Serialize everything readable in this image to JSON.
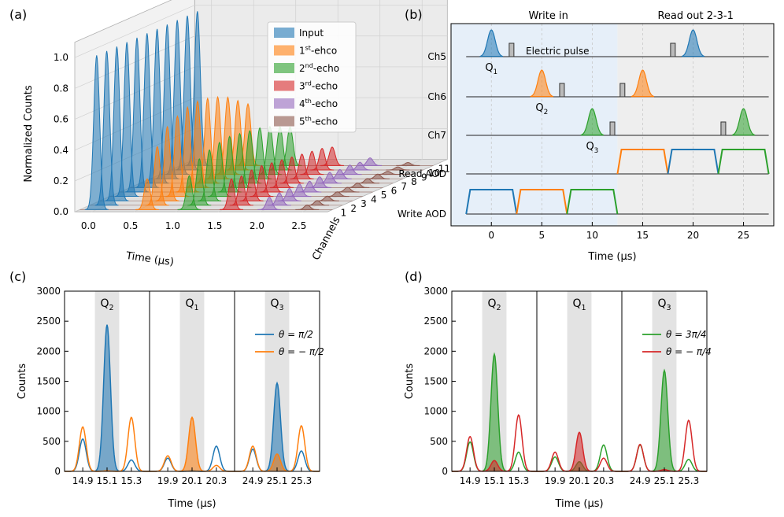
{
  "chart_data": [
    {
      "panel": "(a)",
      "type": "area",
      "title": "",
      "xlabel": "Time (μs)",
      "ylabel": "Normalized Counts",
      "zlabel": "Channels",
      "x_ticks": [
        "0.0",
        "0.5",
        "1.0",
        "1.5",
        "2.0",
        "2.5"
      ],
      "y_ticks": [
        "0.0",
        "0.2",
        "0.4",
        "0.6",
        "0.8",
        "1.0"
      ],
      "channel_ticks": [
        "1",
        "2",
        "3",
        "4",
        "5",
        "6",
        "7",
        "8",
        "9",
        "10",
        "11"
      ],
      "xlim": [
        -0.2,
        2.8
      ],
      "ylim": [
        0,
        1.1
      ],
      "legend": [
        {
          "name": "Input",
          "sup": "",
          "suffix": "",
          "color": "#1f77b4"
        },
        {
          "name": "1",
          "sup": "st",
          "suffix": "-ehco",
          "color": "#ff7f0e"
        },
        {
          "name": "2",
          "sup": "nd",
          "suffix": "-echo",
          "color": "#2ca02c"
        },
        {
          "name": "3",
          "sup": "rd",
          "suffix": "-echo",
          "color": "#d62728"
        },
        {
          "name": "4",
          "sup": "th",
          "suffix": "-echo",
          "color": "#9467bd"
        },
        {
          "name": "5",
          "sup": "th",
          "suffix": "-echo",
          "color": "#8c564b"
        }
      ],
      "series": [
        {
          "name": "Input",
          "time": 0.0,
          "peaks": [
            1.0,
            1.0,
            1.0,
            1.0,
            1.0,
            1.0,
            1.0,
            1.0,
            1.0,
            1.0,
            1.0
          ]
        },
        {
          "name": "1st-ehco",
          "time": 0.6,
          "peaks": [
            0.2,
            0.38,
            0.48,
            0.52,
            0.55,
            0.56,
            0.55,
            0.53,
            0.5,
            0.45,
            0.4
          ]
        },
        {
          "name": "2nd-echo",
          "time": 1.1,
          "peaks": [
            0.22,
            0.3,
            0.33,
            0.35,
            0.36,
            0.35,
            0.34,
            0.33,
            0.31,
            0.28,
            0.25
          ]
        },
        {
          "name": "3rd-echo",
          "time": 1.6,
          "peaks": [
            0.2,
            0.19,
            0.2,
            0.2,
            0.19,
            0.18,
            0.17,
            0.16,
            0.15,
            0.14,
            0.12
          ]
        },
        {
          "name": "4th-echo",
          "time": 2.05,
          "peaks": [
            0.08,
            0.08,
            0.08,
            0.08,
            0.07,
            0.07,
            0.07,
            0.06,
            0.06,
            0.05,
            0.05
          ]
        },
        {
          "name": "5th-echo",
          "time": 2.5,
          "peaks": [
            0.03,
            0.03,
            0.03,
            0.03,
            0.03,
            0.03,
            0.03,
            0.03,
            0.02,
            0.02,
            0.02
          ]
        }
      ]
    },
    {
      "panel": "(b)",
      "type": "line",
      "title": "",
      "xlabel": "Time (μs)",
      "ylabel": "",
      "xlim": [
        -4,
        28
      ],
      "x_ticks": [
        0,
        5,
        10,
        15,
        20,
        25
      ],
      "region_labels": {
        "write": "Write in",
        "read": "Read out 2-3-1"
      },
      "write_region": [
        -4,
        12.5
      ],
      "read_region": [
        12.5,
        28
      ],
      "rows": [
        "Ch5",
        "Ch6",
        "Ch7",
        "Read AOD",
        "Write AOD"
      ],
      "annotation": "Electric pulse",
      "pulses": [
        {
          "row": "Ch5",
          "time": 0,
          "label": "Q",
          "sub": "1",
          "color": "#1f77b4"
        },
        {
          "row": "Ch5",
          "time": 20,
          "color": "#1f77b4"
        },
        {
          "row": "Ch6",
          "time": 5,
          "label": "Q",
          "sub": "2",
          "color": "#ff7f0e"
        },
        {
          "row": "Ch6",
          "time": 15,
          "color": "#ff7f0e"
        },
        {
          "row": "Ch7",
          "time": 10,
          "label": "Q",
          "sub": "3",
          "color": "#2ca02c"
        },
        {
          "row": "Ch7",
          "time": 25,
          "color": "#2ca02c"
        }
      ],
      "electric_pulses": [
        {
          "row": "Ch5",
          "time": 2
        },
        {
          "row": "Ch5",
          "time": 18
        },
        {
          "row": "Ch6",
          "time": 7
        },
        {
          "row": "Ch6",
          "time": 13
        },
        {
          "row": "Ch7",
          "time": 12
        },
        {
          "row": "Ch7",
          "time": 23
        }
      ],
      "aod_windows": [
        {
          "row": "Write AOD",
          "start": -2.5,
          "end": 2.5,
          "color": "#1f77b4"
        },
        {
          "row": "Write AOD",
          "start": 2.5,
          "end": 7.5,
          "color": "#ff7f0e"
        },
        {
          "row": "Write AOD",
          "start": 7.5,
          "end": 12.5,
          "color": "#2ca02c"
        },
        {
          "row": "Read AOD",
          "start": 12.5,
          "end": 17.5,
          "color": "#ff7f0e"
        },
        {
          "row": "Read AOD",
          "start": 17.5,
          "end": 22.5,
          "color": "#1f77b4"
        },
        {
          "row": "Read AOD",
          "start": 22.5,
          "end": 27.5,
          "color": "#2ca02c"
        }
      ]
    },
    {
      "panel": "(c)",
      "type": "line",
      "xlabel": "Time (μs)",
      "ylabel": "Counts",
      "ylim": [
        0,
        3000
      ],
      "y_ticks": [
        0,
        500,
        1000,
        1500,
        2000,
        2500,
        3000
      ],
      "subpanels": [
        {
          "label": "Q",
          "sub": "2",
          "ticks": [
            14.9,
            15.1,
            15.3
          ],
          "xlim": [
            14.75,
            15.45
          ]
        },
        {
          "label": "Q",
          "sub": "1",
          "ticks": [
            19.9,
            20.1,
            20.3
          ],
          "xlim": [
            19.75,
            20.45
          ]
        },
        {
          "label": "Q",
          "sub": "3",
          "ticks": [
            24.9,
            25.1,
            25.3
          ],
          "xlim": [
            24.75,
            25.45
          ]
        }
      ],
      "legend": [
        {
          "name": "θ = π/2",
          "color": "#1f77b4"
        },
        {
          "name": "θ = − π/2",
          "color": "#ff7f0e"
        }
      ],
      "series": [
        {
          "name": "θ = π/2",
          "color": "#1f77b4",
          "peaks": [
            [
              540,
              2440,
              190
            ],
            [
              220,
              10,
              420
            ],
            [
              370,
              1470,
              340
            ]
          ]
        },
        {
          "name": "θ = − π/2",
          "color": "#ff7f0e",
          "peaks": [
            [
              740,
              10,
              900
            ],
            [
              260,
              900,
              100
            ],
            [
              420,
              290,
              760
            ]
          ]
        }
      ]
    },
    {
      "panel": "(d)",
      "type": "line",
      "xlabel": "Time (μs)",
      "ylabel": "Counts",
      "ylim": [
        0,
        3000
      ],
      "y_ticks": [
        0,
        500,
        1000,
        1500,
        2000,
        2500,
        3000
      ],
      "subpanels": [
        {
          "label": "Q",
          "sub": "2",
          "ticks": [
            14.9,
            15.1,
            15.3
          ],
          "xlim": [
            14.75,
            15.45
          ]
        },
        {
          "label": "Q",
          "sub": "1",
          "ticks": [
            19.9,
            20.1,
            20.3
          ],
          "xlim": [
            19.75,
            20.45
          ]
        },
        {
          "label": "Q",
          "sub": "3",
          "ticks": [
            24.9,
            25.1,
            25.3
          ],
          "xlim": [
            24.75,
            25.45
          ]
        }
      ],
      "legend": [
        {
          "name": "θ = 3π/4",
          "color": "#2ca02c"
        },
        {
          "name": "θ = − π/4",
          "color": "#d62728"
        }
      ],
      "series": [
        {
          "name": "θ = 3π/4",
          "color": "#2ca02c",
          "peaks": [
            [
              490,
              1950,
              320
            ],
            [
              240,
              160,
              440
            ],
            [
              440,
              1680,
              200
            ]
          ]
        },
        {
          "name": "θ = − π/4",
          "color": "#d62728",
          "peaks": [
            [
              580,
              180,
              940
            ],
            [
              320,
              650,
              220
            ],
            [
              450,
              30,
              850
            ]
          ]
        }
      ]
    }
  ]
}
